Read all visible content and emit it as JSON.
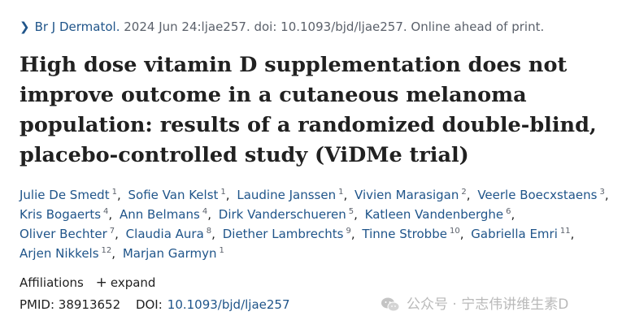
{
  "journal": {
    "name": "Br J Dermatol.",
    "citation": "2024 Jun 24:ljae257. doi: 10.1093/bjd/ljae257. Online ahead of print."
  },
  "title": "High dose vitamin D supplementation does not improve outcome in a cutaneous melanoma population: results of a randomized double-blind, placebo-controlled study (ViDMe trial)",
  "authors": [
    {
      "name": "Julie De Smedt",
      "aff": "1"
    },
    {
      "name": "Sofie Van Kelst",
      "aff": "1"
    },
    {
      "name": "Laudine Janssen",
      "aff": "1"
    },
    {
      "name": "Vivien Marasigan",
      "aff": "2"
    },
    {
      "name": "Veerle Boecxstaens",
      "aff": "3"
    },
    {
      "name": "Kris Bogaerts",
      "aff": "4"
    },
    {
      "name": "Ann Belmans",
      "aff": "4"
    },
    {
      "name": "Dirk Vanderschueren",
      "aff": "5"
    },
    {
      "name": "Katleen Vandenberghe",
      "aff": "6"
    },
    {
      "name": "Oliver Bechter",
      "aff": "7"
    },
    {
      "name": "Claudia Aura",
      "aff": "8"
    },
    {
      "name": "Diether Lambrechts",
      "aff": "9"
    },
    {
      "name": "Tinne Strobbe",
      "aff": "10"
    },
    {
      "name": "Gabriella Emri",
      "aff": "11"
    },
    {
      "name": "Arjen Nikkels",
      "aff": "12"
    },
    {
      "name": "Marjan Garmyn",
      "aff": "1"
    }
  ],
  "affiliations": {
    "label": "Affiliations",
    "expand_icon": "+",
    "expand_label": "expand"
  },
  "ids": {
    "pmid_label": "PMID:",
    "pmid": "38913652",
    "doi_label": "DOI:",
    "doi": "10.1093/bjd/ljae257"
  },
  "watermark": {
    "icon": "wechat-icon",
    "text": "公众号 · 宁志伟讲维生素D"
  },
  "colors": {
    "link": "#20558a",
    "text": "#212121",
    "muted": "#5b616b",
    "watermark": "#b9b9b9"
  }
}
